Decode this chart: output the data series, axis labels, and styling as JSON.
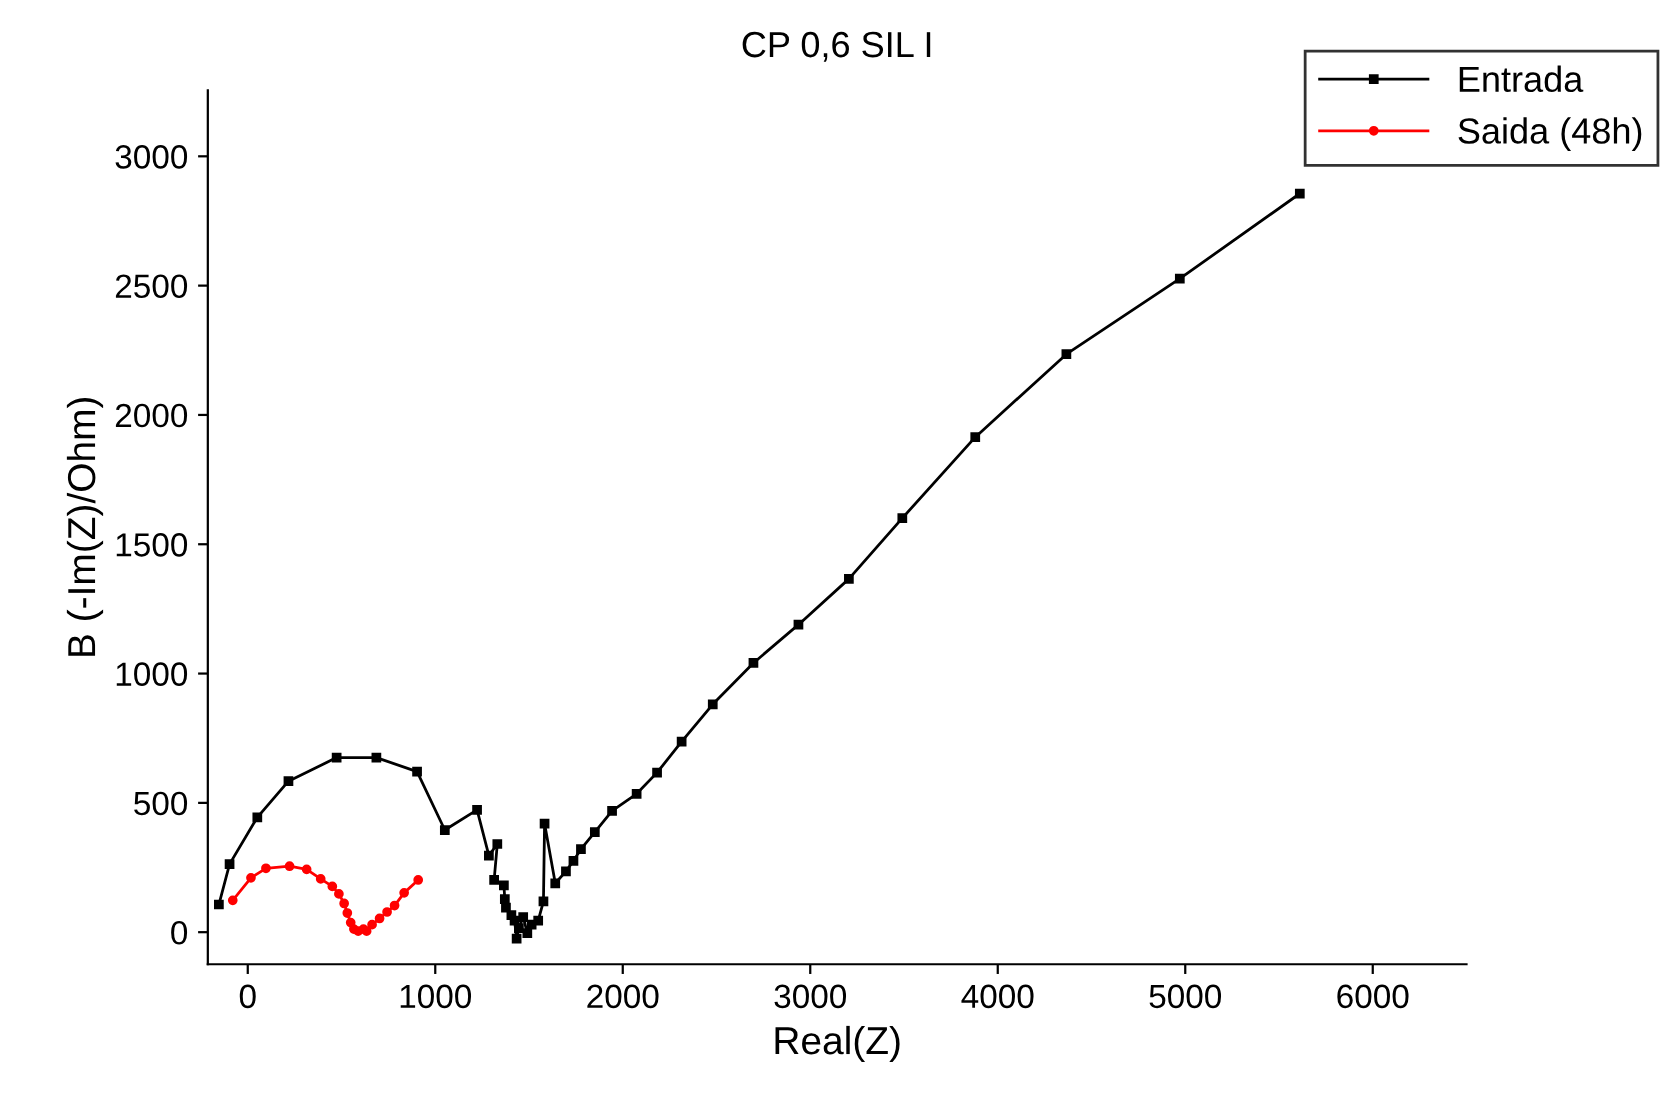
{
  "chart_data": {
    "type": "line",
    "title": "CP 0,6 SIL I",
    "xlabel": "Real(Z)",
    "ylabel": "B (-Im(Z)/Ohm)",
    "xlim": [
      -213,
      6500
    ],
    "ylim": [
      -124,
      3255
    ],
    "xticks": [
      0,
      1000,
      2000,
      3000,
      4000,
      5000,
      6000
    ],
    "yticks": [
      0,
      500,
      1000,
      1500,
      2000,
      2500,
      3000
    ],
    "grid": false,
    "legend": "top right",
    "series": [
      {
        "name": "Entrada",
        "color": "#000000",
        "marker": "square",
        "x": [
          -154,
          -97,
          51,
          217,
          474,
          686,
          903,
          1051,
          1223,
          1286,
          1331,
          1314,
          1366,
          1371,
          1377,
          1406,
          1423,
          1434,
          1446,
          1469,
          1491,
          1514,
          1549,
          1577,
          1583,
          1640,
          1697,
          1737,
          1777,
          1851,
          1943,
          2074,
          2183,
          2314,
          2480,
          2697,
          2937,
          3206,
          3491,
          3880,
          4366,
          4971,
          5611
        ],
        "values": [
          107,
          263,
          444,
          584,
          675,
          675,
          621,
          395,
          473,
          296,
          341,
          202,
          181,
          128,
          95,
          66,
          45,
          -25,
          16,
          58,
          -4,
          29,
          45,
          119,
          420,
          189,
          235,
          276,
          321,
          387,
          469,
          535,
          617,
          737,
          881,
          1041,
          1189,
          1366,
          1601,
          1914,
          2235,
          2527,
          2856
        ]
      },
      {
        "name": "Saida (48h)",
        "color": "#ff0000",
        "marker": "circle",
        "x": [
          -80,
          17,
          97,
          223,
          314,
          389,
          451,
          486,
          514,
          531,
          549,
          566,
          589,
          617,
          634,
          663,
          703,
          743,
          783,
          834,
          909
        ],
        "values": [
          123,
          210,
          247,
          255,
          243,
          206,
          177,
          148,
          111,
          74,
          37,
          12,
          4,
          12,
          4,
          29,
          53,
          78,
          103,
          152,
          202
        ]
      }
    ]
  }
}
